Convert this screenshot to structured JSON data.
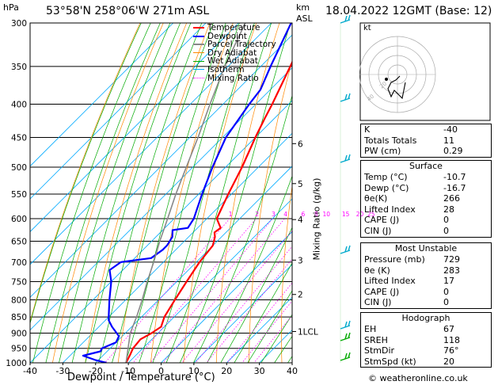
{
  "header": {
    "location": "53°58'N  258°06'W  271m  ASL",
    "hpa_label": "hPa",
    "km_label": "km",
    "asl_label": "ASL",
    "datetime": "18.04.2022  12GMT  (Base: 12)"
  },
  "legend": {
    "items": [
      {
        "label": "Temperature",
        "color": "#ff0000",
        "style": "solid"
      },
      {
        "label": "Dewpoint",
        "color": "#0000ff",
        "style": "solid"
      },
      {
        "label": "Parcel Trajectory",
        "color": "#888888",
        "style": "solid"
      },
      {
        "label": "Dry Adiabat",
        "color": "#ff8800",
        "style": "solid"
      },
      {
        "label": "Wet Adiabat",
        "color": "#00aa00",
        "style": "solid"
      },
      {
        "label": "Isotherm",
        "color": "#00aaff",
        "style": "solid"
      },
      {
        "label": "Mixing Ratio",
        "color": "#ff00ff",
        "style": "dotted"
      }
    ]
  },
  "chart_data": {
    "type": "line",
    "chart_kind": "skew-T log-P",
    "xlabel": "Dewpoint / Temperature (°C)",
    "ylabel": "Mixing Ratio (g/kg)",
    "xlim": [
      -40,
      40
    ],
    "ylim": [
      1000,
      300
    ],
    "y_scale": "log",
    "x_ticks": [
      -40,
      -30,
      -20,
      -10,
      0,
      10,
      20,
      30,
      40
    ],
    "pressure_ticks": [
      300,
      350,
      400,
      450,
      500,
      550,
      600,
      650,
      700,
      750,
      800,
      850,
      900,
      950,
      1000
    ],
    "km_ticks": [
      {
        "label": "6",
        "p": 460
      },
      {
        "label": "5",
        "p": 530
      },
      {
        "label": "4",
        "p": 602
      },
      {
        "label": "3",
        "p": 695
      },
      {
        "label": "2",
        "p": 785
      },
      {
        "label": "1LCL",
        "p": 895
      }
    ],
    "mixing_ratio_labels": [
      {
        "label": "1",
        "value": 1
      },
      {
        "label": "2",
        "value": 2
      },
      {
        "label": "3",
        "value": 3
      },
      {
        "label": "4",
        "value": 4
      },
      {
        "label": "6",
        "value": 6
      },
      {
        "label": "8",
        "value": 8
      },
      {
        "label": "10",
        "value": 10
      },
      {
        "label": "15",
        "value": 15
      },
      {
        "label": "20",
        "value": 20
      },
      {
        "label": "25",
        "value": 25
      }
    ],
    "series": [
      {
        "name": "Temperature",
        "color": "#ff0000",
        "points": [
          [
            1000,
            -10.7
          ],
          [
            970,
            -12
          ],
          [
            950,
            -13
          ],
          [
            920,
            -13.5
          ],
          [
            900,
            -12
          ],
          [
            880,
            -11
          ],
          [
            850,
            -13
          ],
          [
            800,
            -15
          ],
          [
            750,
            -17
          ],
          [
            700,
            -19
          ],
          [
            660,
            -20
          ],
          [
            640,
            -22
          ],
          [
            630,
            -23.5
          ],
          [
            620,
            -23
          ],
          [
            600,
            -27
          ],
          [
            550,
            -31
          ],
          [
            500,
            -35
          ],
          [
            450,
            -40
          ],
          [
            420,
            -43
          ],
          [
            400,
            -45
          ],
          [
            350,
            -51
          ],
          [
            300,
            -58
          ]
        ]
      },
      {
        "name": "Dewpoint",
        "color": "#0000ff",
        "points": [
          [
            1000,
            -16.7
          ],
          [
            990,
            -21
          ],
          [
            975,
            -26
          ],
          [
            960,
            -22
          ],
          [
            950,
            -22.5
          ],
          [
            930,
            -20
          ],
          [
            910,
            -21
          ],
          [
            880,
            -26
          ],
          [
            860,
            -29
          ],
          [
            850,
            -30
          ],
          [
            800,
            -35
          ],
          [
            750,
            -40
          ],
          [
            720,
            -44
          ],
          [
            700,
            -43
          ],
          [
            690,
            -35
          ],
          [
            670,
            -34
          ],
          [
            660,
            -34
          ],
          [
            640,
            -35
          ],
          [
            625,
            -37
          ],
          [
            620,
            -33
          ],
          [
            600,
            -34
          ],
          [
            550,
            -39
          ],
          [
            500,
            -44
          ],
          [
            450,
            -49
          ],
          [
            400,
            -52
          ],
          [
            380,
            -53
          ],
          [
            350,
            -57
          ],
          [
            300,
            -64
          ]
        ]
      },
      {
        "name": "Parcel Trajectory",
        "color": "#888888",
        "points": [
          [
            1000,
            -10.7
          ],
          [
            900,
            -18.5
          ],
          [
            850,
            -21.5
          ],
          [
            800,
            -25
          ],
          [
            750,
            -29
          ],
          [
            700,
            -33
          ],
          [
            650,
            -37.5
          ],
          [
            600,
            -42
          ],
          [
            550,
            -47
          ],
          [
            500,
            -52
          ],
          [
            450,
            -57.5
          ],
          [
            400,
            -64
          ],
          [
            350,
            -71
          ],
          [
            300,
            -78
          ]
        ]
      }
    ]
  },
  "hodograph": {
    "label": "kt",
    "ring_labels": [
      "20",
      "40"
    ]
  },
  "indices": {
    "k_label": "K",
    "k_value": "-40",
    "tt_label": "Totals Totals",
    "tt_value": "11",
    "pw_label": "PW (cm)",
    "pw_value": "0.29"
  },
  "surface": {
    "title": "Surface",
    "temp_label": "Temp (°C)",
    "temp_value": "-10.7",
    "dewp_label": "Dewp (°C)",
    "dewp_value": "-16.7",
    "thetae_label": "θe(K)",
    "thetae_value": "266",
    "li_label": "Lifted Index",
    "li_value": "28",
    "cape_label": "CAPE (J)",
    "cape_value": "0",
    "cin_label": "CIN (J)",
    "cin_value": "0"
  },
  "most_unstable": {
    "title": "Most Unstable",
    "pressure_label": "Pressure (mb)",
    "pressure_value": "729",
    "thetae_label": "θe (K)",
    "thetae_value": "283",
    "li_label": "Lifted Index",
    "li_value": "17",
    "cape_label": "CAPE (J)",
    "cape_value": "0",
    "cin_label": "CIN (J)",
    "cin_value": "0"
  },
  "hodograph_table": {
    "title": "Hodograph",
    "eh_label": "EH",
    "eh_value": "67",
    "sreh_label": "SREH",
    "sreh_value": "118",
    "stmdir_label": "StmDir",
    "stmdir_value": "76°",
    "stmspd_label": "StmSpd (kt)",
    "stmspd_value": "20"
  },
  "copyright": "© weatheronline.co.uk"
}
